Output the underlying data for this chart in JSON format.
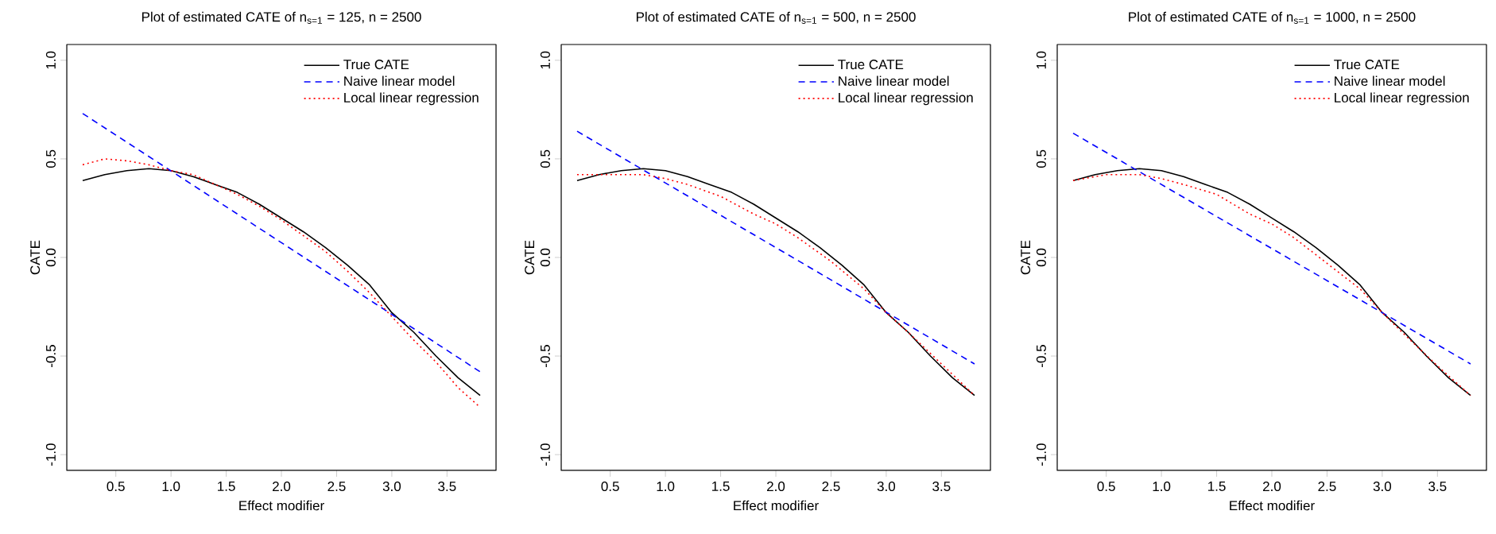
{
  "chart_data": [
    {
      "type": "line",
      "title": "Plot of estimated CATE of n$_{s=1}$ = 125, n = 2500",
      "xlabel": "Effect modifier",
      "ylabel": "CATE",
      "xlim": [
        0.056,
        3.944
      ],
      "ylim": [
        -1.08,
        1.08
      ],
      "xticks": [
        {
          "value": 0.5,
          "label": "0.5"
        },
        {
          "value": 1,
          "label": "1.0"
        },
        {
          "value": 1.5,
          "label": "1.5"
        },
        {
          "value": 2,
          "label": "2.0"
        },
        {
          "value": 2.5,
          "label": "2.5"
        },
        {
          "value": 3,
          "label": "3.0"
        },
        {
          "value": 3.5,
          "label": "3.5"
        }
      ],
      "yticks": [
        {
          "value": -1,
          "label": "-1.0"
        },
        {
          "value": -0.5,
          "label": "-0.5"
        },
        {
          "value": 0,
          "label": "0.0"
        },
        {
          "value": 0.5,
          "label": "0.5"
        },
        {
          "value": 1,
          "label": "1.0"
        }
      ],
      "legend": "top right",
      "series": [
        {
          "name": "True CATE",
          "color": "#000000",
          "line_style": "solid",
          "x": [
            0.2,
            0.4,
            0.6,
            0.8,
            1.0,
            1.2,
            1.4,
            1.6,
            1.8,
            2.0,
            2.2,
            2.4,
            2.6,
            2.8,
            3.0,
            3.2,
            3.4,
            3.6,
            3.8
          ],
          "values": [
            0.39,
            0.42,
            0.44,
            0.45,
            0.44,
            0.41,
            0.37,
            0.33,
            0.27,
            0.2,
            0.13,
            0.05,
            -0.04,
            -0.14,
            -0.28,
            -0.38,
            -0.5,
            -0.61,
            -0.7
          ]
        },
        {
          "name": "Naive linear model",
          "color": "#0000ff",
          "line_style": "dashed",
          "x": [
            0.2,
            3.8
          ],
          "values": [
            0.73,
            -0.58
          ]
        },
        {
          "name": "Local linear regression",
          "color": "#ff0000",
          "line_style": "dotted",
          "x": [
            0.2,
            0.4,
            0.6,
            0.8,
            1.0,
            1.2,
            1.4,
            1.6,
            1.8,
            2.0,
            2.2,
            2.4,
            2.6,
            2.8,
            3.0,
            3.2,
            3.4,
            3.6,
            3.8
          ],
          "values": [
            0.47,
            0.5,
            0.49,
            0.47,
            0.44,
            0.42,
            0.37,
            0.32,
            0.26,
            0.19,
            0.11,
            0.03,
            -0.07,
            -0.18,
            -0.3,
            -0.42,
            -0.53,
            -0.66,
            -0.76
          ]
        }
      ]
    },
    {
      "type": "line",
      "title": "Plot of estimated CATE of n$_{s=1}$ = 500, n = 2500",
      "xlabel": "Effect modifier",
      "ylabel": "CATE",
      "xlim": [
        0.056,
        3.944
      ],
      "ylim": [
        -1.08,
        1.08
      ],
      "xticks": [
        {
          "value": 0.5,
          "label": "0.5"
        },
        {
          "value": 1,
          "label": "1.0"
        },
        {
          "value": 1.5,
          "label": "1.5"
        },
        {
          "value": 2,
          "label": "2.0"
        },
        {
          "value": 2.5,
          "label": "2.5"
        },
        {
          "value": 3,
          "label": "3.0"
        },
        {
          "value": 3.5,
          "label": "3.5"
        }
      ],
      "yticks": [
        {
          "value": -1,
          "label": "-1.0"
        },
        {
          "value": -0.5,
          "label": "-0.5"
        },
        {
          "value": 0,
          "label": "0.0"
        },
        {
          "value": 0.5,
          "label": "0.5"
        },
        {
          "value": 1,
          "label": "1.0"
        }
      ],
      "legend": "top right",
      "series": [
        {
          "name": "True CATE",
          "color": "#000000",
          "line_style": "solid",
          "x": [
            0.2,
            0.4,
            0.6,
            0.8,
            1.0,
            1.2,
            1.4,
            1.6,
            1.8,
            2.0,
            2.2,
            2.4,
            2.6,
            2.8,
            3.0,
            3.2,
            3.4,
            3.6,
            3.8
          ],
          "values": [
            0.39,
            0.42,
            0.44,
            0.45,
            0.44,
            0.41,
            0.37,
            0.33,
            0.27,
            0.2,
            0.13,
            0.05,
            -0.04,
            -0.14,
            -0.28,
            -0.38,
            -0.5,
            -0.61,
            -0.7
          ]
        },
        {
          "name": "Naive linear model",
          "color": "#0000ff",
          "line_style": "dashed",
          "x": [
            0.2,
            3.8
          ],
          "values": [
            0.64,
            -0.54
          ]
        },
        {
          "name": "Local linear regression",
          "color": "#ff0000",
          "line_style": "dotted",
          "x": [
            0.2,
            0.5,
            0.8,
            1.0,
            1.2,
            1.5,
            1.8,
            2.0,
            2.2,
            2.5,
            2.8,
            3.0,
            3.2,
            3.5,
            3.8
          ],
          "values": [
            0.42,
            0.42,
            0.42,
            0.4,
            0.37,
            0.31,
            0.22,
            0.17,
            0.1,
            -0.02,
            -0.16,
            -0.28,
            -0.38,
            -0.54,
            -0.7
          ]
        }
      ]
    },
    {
      "type": "line",
      "title": "Plot of estimated CATE of n$_{s=1}$ = 1000, n = 2500",
      "xlabel": "Effect modifier",
      "ylabel": "CATE",
      "xlim": [
        0.056,
        3.944
      ],
      "ylim": [
        -1.08,
        1.08
      ],
      "xticks": [
        {
          "value": 0.5,
          "label": "0.5"
        },
        {
          "value": 1,
          "label": "1.0"
        },
        {
          "value": 1.5,
          "label": "1.5"
        },
        {
          "value": 2,
          "label": "2.0"
        },
        {
          "value": 2.5,
          "label": "2.5"
        },
        {
          "value": 3,
          "label": "3.0"
        },
        {
          "value": 3.5,
          "label": "3.5"
        }
      ],
      "yticks": [
        {
          "value": -1,
          "label": "-1.0"
        },
        {
          "value": -0.5,
          "label": "-0.5"
        },
        {
          "value": 0,
          "label": "0.0"
        },
        {
          "value": 0.5,
          "label": "0.5"
        },
        {
          "value": 1,
          "label": "1.0"
        }
      ],
      "legend": "top right",
      "series": [
        {
          "name": "True CATE",
          "color": "#000000",
          "line_style": "solid",
          "x": [
            0.2,
            0.4,
            0.6,
            0.8,
            1.0,
            1.2,
            1.4,
            1.6,
            1.8,
            2.0,
            2.2,
            2.4,
            2.6,
            2.8,
            3.0,
            3.2,
            3.4,
            3.6,
            3.8
          ],
          "values": [
            0.39,
            0.42,
            0.44,
            0.45,
            0.44,
            0.41,
            0.37,
            0.33,
            0.27,
            0.2,
            0.13,
            0.05,
            -0.04,
            -0.14,
            -0.28,
            -0.38,
            -0.5,
            -0.61,
            -0.7
          ]
        },
        {
          "name": "Naive linear model",
          "color": "#0000ff",
          "line_style": "dashed",
          "x": [
            0.2,
            3.8
          ],
          "values": [
            0.63,
            -0.54
          ]
        },
        {
          "name": "Local linear regression",
          "color": "#ff0000",
          "line_style": "dotted",
          "x": [
            0.2,
            0.5,
            0.8,
            1.0,
            1.2,
            1.5,
            1.8,
            2.0,
            2.2,
            2.5,
            2.8,
            3.0,
            3.2,
            3.5,
            3.8
          ],
          "values": [
            0.39,
            0.42,
            0.42,
            0.4,
            0.37,
            0.32,
            0.22,
            0.17,
            0.1,
            -0.03,
            -0.16,
            -0.28,
            -0.39,
            -0.55,
            -0.7
          ]
        }
      ]
    }
  ]
}
